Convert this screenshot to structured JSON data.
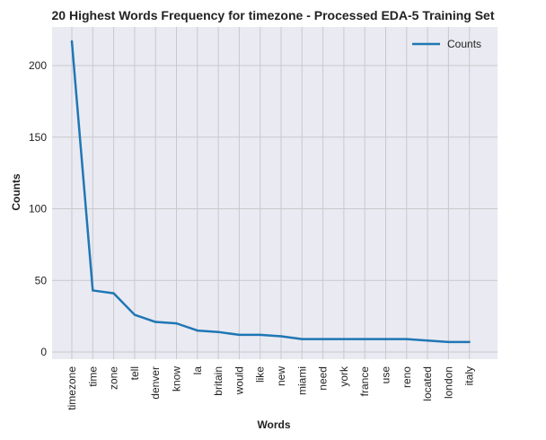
{
  "chart_data": {
    "type": "line",
    "title": "20 Highest Words Frequency for timezone - Processed EDA-5 Training Set",
    "xlabel": "Words",
    "ylabel": "Counts",
    "categories": [
      "timezone",
      "time",
      "zone",
      "tell",
      "denver",
      "know",
      "la",
      "britain",
      "would",
      "like",
      "new",
      "miami",
      "need",
      "york",
      "france",
      "use",
      "reno",
      "located",
      "london",
      "italy"
    ],
    "series": [
      {
        "name": "Counts",
        "values": [
          217,
          43,
          41,
          26,
          21,
          20,
          15,
          14,
          12,
          12,
          11,
          9,
          9,
          9,
          9,
          9,
          9,
          8,
          7,
          7
        ],
        "color": "#1f77b4"
      }
    ],
    "ylim": [
      -5,
      227
    ],
    "yticks": [
      0,
      50,
      100,
      150,
      200
    ],
    "grid": true,
    "legend": "top-right",
    "background": "#eaeaf2",
    "grid_color": "#c8c8cc"
  }
}
